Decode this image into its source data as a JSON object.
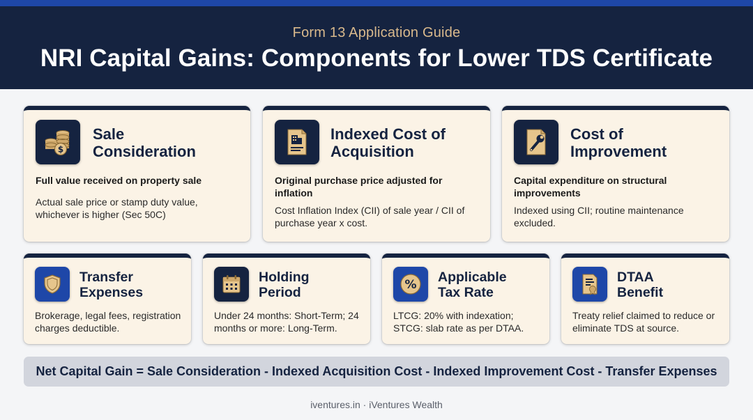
{
  "header": {
    "subtitle": "Form 13 Application Guide",
    "title": "NRI Capital Gains: Components for Lower TDS Certificate"
  },
  "cards_top": [
    {
      "icon": "coins-dollar-icon",
      "title": "Sale\nConsideration",
      "subtitle": "Full value received on property sale",
      "body": "Actual sale price or stamp duty value, whichever is higher (Sec 50C)"
    },
    {
      "icon": "document-building-icon",
      "title": "Indexed Cost of\nAcquisition",
      "subtitle": "Original purchase price adjusted for inflation",
      "body": "Cost Inflation Index (CII) of sale year / CII of purchase year x cost."
    },
    {
      "icon": "document-wrench-icon",
      "title": "Cost of\nImprovement",
      "subtitle": "Capital expenditure on structural improvements",
      "body": "Indexed using CII; routine maintenance excluded."
    }
  ],
  "cards_bottom": [
    {
      "icon": "shield-icon",
      "title": "Transfer\nExpenses",
      "body": "Brokerage, legal fees, registration charges deductible."
    },
    {
      "icon": "calendar-icon",
      "title": "Holding\nPeriod",
      "body": "Under 24 months: Short-Term; 24 months or more: Long-Term."
    },
    {
      "icon": "percent-icon",
      "title": "Applicable\nTax Rate",
      "body": "LTCG: 20% with indexation; STCG: slab rate as per DTAA."
    },
    {
      "icon": "certificate-icon",
      "title": "DTAA\nBenefit",
      "body": "Treaty relief claimed to reduce or eliminate TDS at source."
    }
  ],
  "formula": "Net Capital Gain = Sale Consideration - Indexed Acquisition Cost - Indexed Improvement Cost - Transfer Expenses",
  "footer": "iventures.in · iVentures Wealth",
  "colors": {
    "navy": "#152340",
    "accent_blue": "#1e47a8",
    "gold": "#d9b98c",
    "card_bg": "#fbf3e6",
    "formula_bg": "#d2d5dd"
  }
}
